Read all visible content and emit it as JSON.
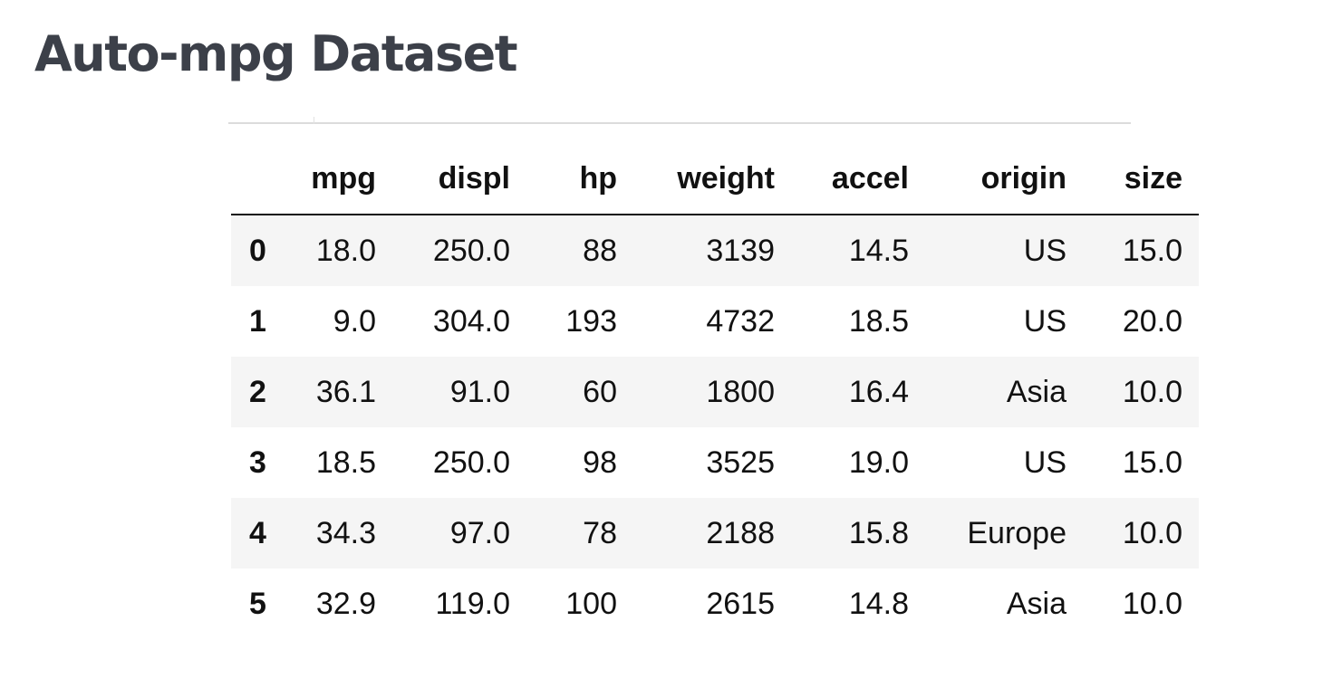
{
  "page": {
    "title": "Auto-mpg Dataset"
  },
  "table": {
    "columns": [
      "mpg",
      "displ",
      "hp",
      "weight",
      "accel",
      "origin",
      "size"
    ],
    "rows": [
      {
        "index": "0",
        "mpg": "18.0",
        "displ": "250.0",
        "hp": "88",
        "weight": "3139",
        "accel": "14.5",
        "origin": "US",
        "size": "15.0"
      },
      {
        "index": "1",
        "mpg": "9.0",
        "displ": "304.0",
        "hp": "193",
        "weight": "4732",
        "accel": "18.5",
        "origin": "US",
        "size": "20.0"
      },
      {
        "index": "2",
        "mpg": "36.1",
        "displ": "91.0",
        "hp": "60",
        "weight": "1800",
        "accel": "16.4",
        "origin": "Asia",
        "size": "10.0"
      },
      {
        "index": "3",
        "mpg": "18.5",
        "displ": "250.0",
        "hp": "98",
        "weight": "3525",
        "accel": "19.0",
        "origin": "US",
        "size": "15.0"
      },
      {
        "index": "4",
        "mpg": "34.3",
        "displ": "97.0",
        "hp": "78",
        "weight": "2188",
        "accel": "15.8",
        "origin": "Europe",
        "size": "10.0"
      },
      {
        "index": "5",
        "mpg": "32.9",
        "displ": "119.0",
        "hp": "100",
        "weight": "2615",
        "accel": "14.8",
        "origin": "Asia",
        "size": "10.0"
      }
    ]
  },
  "colors": {
    "title": "#3c4049",
    "stripe": "#f5f5f5",
    "text": "#111111"
  }
}
